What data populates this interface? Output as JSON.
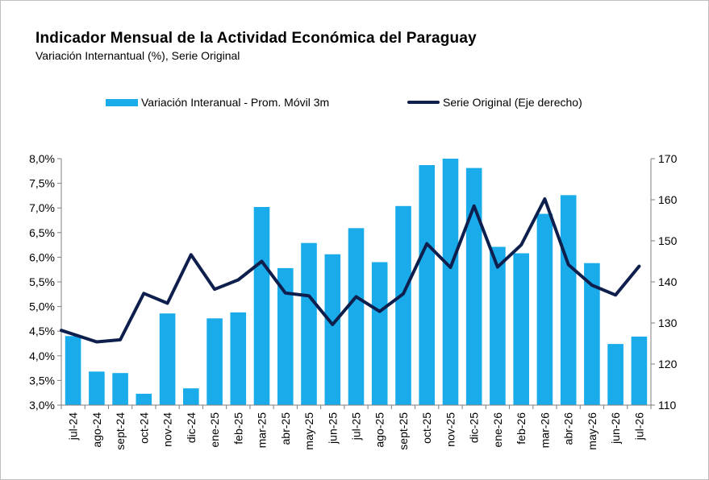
{
  "header": {
    "title": "Indicador  Mensual de la Actividad  Económica del Paraguay",
    "subtitle": "Variación Internantual  (%), Serie Original"
  },
  "colors": {
    "bar": "#1aacea",
    "line": "#0f1f4d",
    "axis": "#7f7f7f"
  },
  "chart_data": {
    "type": "bar",
    "categories": [
      "jul-24",
      "ago-24",
      "sept-24",
      "oct-24",
      "nov-24",
      "dic-24",
      "ene-25",
      "feb-25",
      "mar-25",
      "abr-25",
      "may-25",
      "jun-25",
      "jul-25",
      "ago-25",
      "sept-25",
      "oct-25",
      "nov-25",
      "dic-25",
      "ene-26",
      "feb-26",
      "mar-26",
      "abr-26",
      "may-26",
      "jun-26",
      "jul-26"
    ],
    "series": [
      {
        "name": "Variación Interanual - Prom. Móvil 3m",
        "type": "bar",
        "axis": "left",
        "values": [
          4.4,
          3.68,
          3.65,
          3.23,
          4.86,
          3.34,
          4.76,
          4.88,
          7.02,
          5.78,
          6.29,
          6.06,
          6.59,
          5.9,
          7.04,
          7.87,
          8.0,
          7.81,
          6.21,
          6.08,
          6.88,
          7.26,
          5.88,
          4.24,
          4.39
        ]
      },
      {
        "name": "Serie Original (Eje derecho)",
        "type": "line",
        "axis": "right",
        "values": [
          128.2,
          125.4,
          125.9,
          137.2,
          134.8,
          146.6,
          138.2,
          140.5,
          145.0,
          137.3,
          136.6,
          129.6,
          136.4,
          132.8,
          137.1,
          149.3,
          143.5,
          158.5,
          143.6,
          149.0,
          160.2,
          144.2,
          139.2,
          136.8,
          143.8
        ]
      }
    ],
    "yleft": {
      "min": 3.0,
      "max": 8.0,
      "step": 0.5,
      "ticks": [
        "3,0%",
        "3,5%",
        "4,0%",
        "4,5%",
        "5,0%",
        "5,5%",
        "6,0%",
        "6,5%",
        "7,0%",
        "7,5%",
        "8,0%"
      ]
    },
    "yright": {
      "min": 110,
      "max": 170,
      "step": 10,
      "ticks": [
        "110",
        "120",
        "130",
        "140",
        "150",
        "160",
        "170"
      ]
    },
    "legend": "top-center",
    "grid": false
  }
}
